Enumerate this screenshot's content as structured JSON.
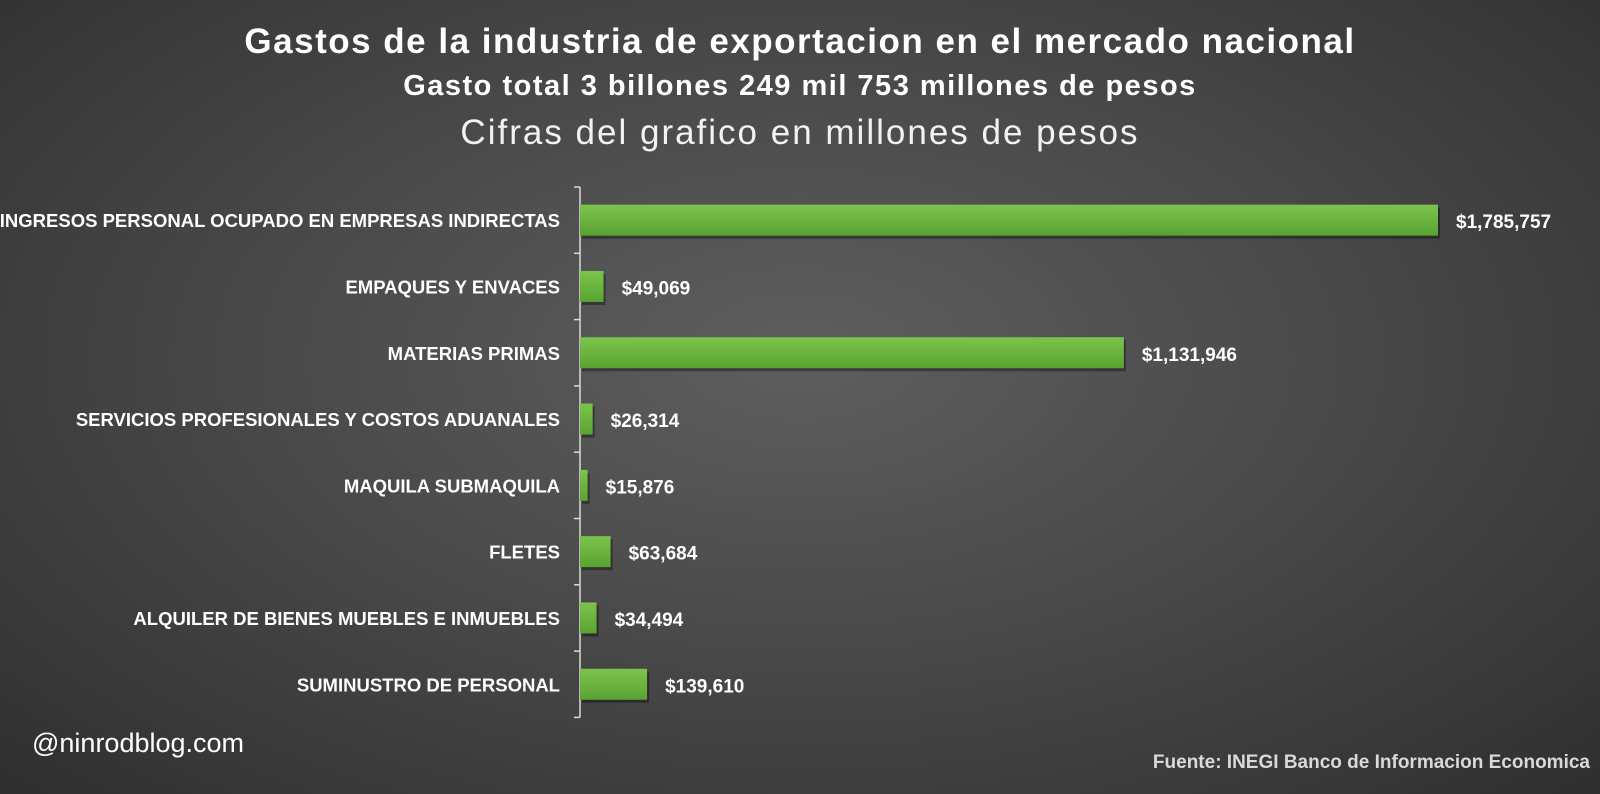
{
  "header": {
    "title": "Gastos de la industria de exportacion en el mercado nacional",
    "subtitle": "Gasto total 3 billones 249 mil 753 millones de pesos",
    "subtitle2": "Cifras del grafico en millones de pesos"
  },
  "chart_data": {
    "type": "bar",
    "orientation": "horizontal",
    "categories": [
      "INGRESOS PERSONAL OCUPADO EN EMPRESAS INDIRECTAS",
      "EMPAQUES Y ENVACES",
      "MATERIAS PRIMAS",
      "SERVICIOS PROFESIONALES Y COSTOS ADUANALES",
      "MAQUILA SUBMAQUILA",
      "FLETES",
      "ALQUILER DE BIENES MUEBLES E INMUEBLES",
      "SUMINUSTRO DE PERSONAL"
    ],
    "values": [
      1785757,
      49069,
      1131946,
      26314,
      15876,
      63684,
      34494,
      139610
    ],
    "data_labels": [
      "$1,785,757",
      "$49,069",
      "$1,131,946",
      "$26,314",
      "$15,876",
      "$63,684",
      "$34,494",
      "$139,610"
    ],
    "bar_color": "#6bb43e",
    "grid": false,
    "legend": "none"
  },
  "footer": {
    "watermark": "@ninrodblog.com",
    "source": "Fuente: INEGI Banco de Informacion Economica"
  }
}
